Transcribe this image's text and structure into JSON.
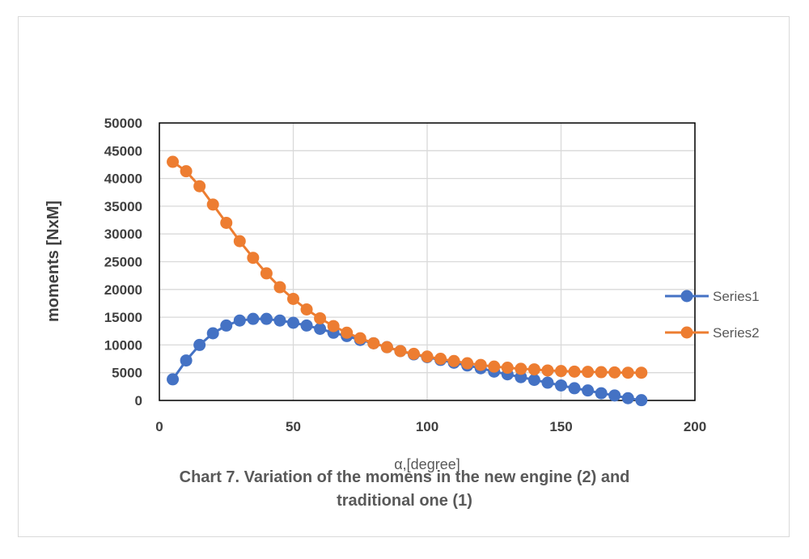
{
  "chart_data": {
    "type": "line",
    "xlabel": "α,[degree]",
    "ylabel": "moments [NxM]",
    "xlim": [
      0,
      200
    ],
    "ylim": [
      0,
      50000
    ],
    "x_ticks": [
      "0",
      "50",
      "100",
      "150",
      "200"
    ],
    "y_ticks": [
      "0",
      "5000",
      "10000",
      "15000",
      "20000",
      "25000",
      "30000",
      "35000",
      "40000",
      "45000",
      "50000"
    ],
    "grid": true,
    "legend_position": "right",
    "x": [
      5,
      10,
      15,
      20,
      25,
      30,
      35,
      40,
      45,
      50,
      55,
      60,
      65,
      70,
      75,
      80,
      85,
      90,
      95,
      100,
      105,
      110,
      115,
      120,
      125,
      130,
      135,
      140,
      145,
      150,
      155,
      160,
      165,
      170,
      175,
      180
    ],
    "series": [
      {
        "name": "Series1",
        "color": "#4472C4",
        "values": [
          3800,
          7200,
          10000,
          12100,
          13500,
          14400,
          14700,
          14700,
          14400,
          14000,
          13500,
          12900,
          12200,
          11600,
          10900,
          10300,
          9600,
          8900,
          8300,
          7800,
          7300,
          6800,
          6300,
          5800,
          5200,
          4700,
          4200,
          3700,
          3200,
          2700,
          2200,
          1800,
          1300,
          900,
          400,
          50
        ]
      },
      {
        "name": "Series2",
        "color": "#ED7D31",
        "values": [
          43000,
          41300,
          38600,
          35300,
          32000,
          28700,
          25700,
          22900,
          20400,
          18300,
          16400,
          14800,
          13400,
          12200,
          11200,
          10300,
          9600,
          8900,
          8400,
          7900,
          7500,
          7100,
          6700,
          6400,
          6100,
          5900,
          5700,
          5600,
          5400,
          5300,
          5200,
          5150,
          5100,
          5050,
          5000,
          5000
        ]
      }
    ],
    "caption": [
      "Chart 7. Variation of the momens in the new engine (2) and",
      "traditional one (1)"
    ]
  }
}
